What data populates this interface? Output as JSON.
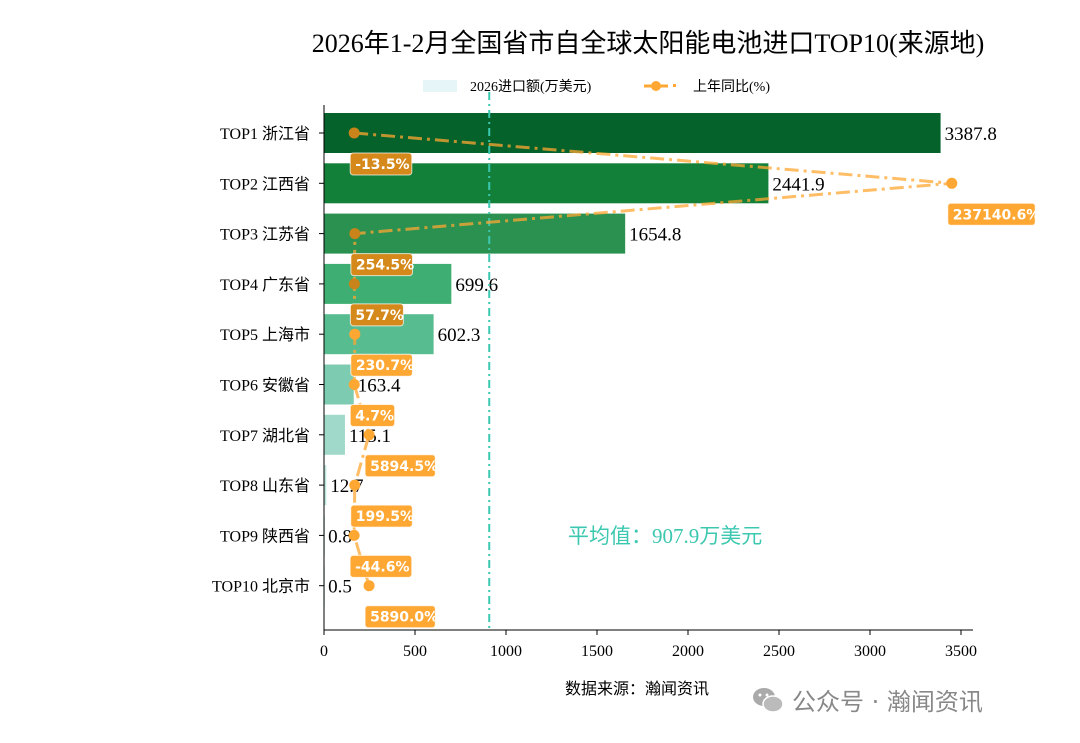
{
  "chart_data": {
    "type": "bar",
    "orientation": "horizontal",
    "title": "2026年1-2月全国省市自全球太阳能电池进口TOP10(来源地)",
    "categories": [
      "TOP1 浙江省",
      "TOP2 江西省",
      "TOP3 江苏省",
      "TOP4 广东省",
      "TOP5 上海市",
      "TOP6 安徽省",
      "TOP7 湖北省",
      "TOP8 山东省",
      "TOP9 陕西省",
      "TOP10 北京市"
    ],
    "series": [
      {
        "name": "2026进口额(万美元)",
        "type": "bar",
        "values": [
          3387.8,
          2441.9,
          1654.8,
          699.6,
          602.3,
          163.4,
          115.1,
          12.7,
          0.8,
          0.5
        ],
        "value_labels": [
          "3387.8",
          "2441.9",
          "1654.8",
          "699.6",
          "602.3",
          "163.4",
          "115.1",
          "12.7",
          "0.8",
          "0.5"
        ]
      },
      {
        "name": "上年同比(%)",
        "type": "line",
        "values": [
          -13.5,
          237140.6,
          254.5,
          57.7,
          230.7,
          4.7,
          5894.5,
          199.5,
          -44.6,
          5890.0
        ],
        "value_labels": [
          "-13.5%",
          "237140.6%",
          "254.5%",
          "57.7%",
          "230.7%",
          "4.7%",
          "5894.5%",
          "199.5%",
          "-44.6%",
          "5890.0%"
        ]
      }
    ],
    "xlim": [
      0,
      3550
    ],
    "secondary_xlim": [
      -12000,
      244400
    ],
    "xticks": [
      "0",
      "500",
      "1000",
      "1500",
      "2000",
      "2500",
      "3000",
      "3500"
    ],
    "average": {
      "value": 907.9,
      "label": "平均值：907.9万美元"
    },
    "legend_position": "top-center",
    "grid": false,
    "colors": {
      "bars": [
        "#04622a",
        "#13803a",
        "#2a9150",
        "#3fae73",
        "#58bc91",
        "#7dcbb0",
        "#a0d9ca",
        "#bde5dc",
        "#d3eee8",
        "#e4f5f2"
      ],
      "line": "#ffa733",
      "average": "#3cc8b0",
      "legend_bar": "#e6f5f8"
    }
  },
  "source": "数据来源：瀚闻资讯",
  "watermark": "公众号 · 瀚闻资讯"
}
